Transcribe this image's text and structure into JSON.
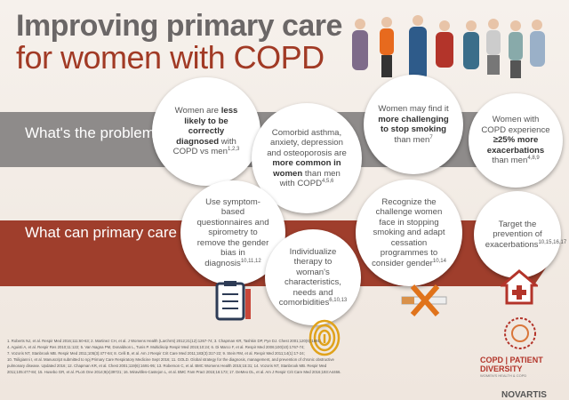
{
  "header": {
    "title_line_1": "Improving primary care",
    "title_line_2": "for women with COPD"
  },
  "rows": [
    {
      "label": "What's the problem?"
    },
    {
      "label": "What can primary care physicians do?"
    }
  ],
  "bubbles": [
    [
      {
        "t": "Women are "
      },
      {
        "b": "less likely to be correctly diagnosed"
      },
      {
        "t": " with COPD vs men"
      },
      {
        "sup": "1,2,3"
      }
    ],
    [
      {
        "t": "Comorbid asthma, anxiety, depression and osteoporosis are "
      },
      {
        "b": "more common in women"
      },
      {
        "t": " than men with COPD"
      },
      {
        "sup": "4,5,6"
      }
    ],
    [
      {
        "t": "Women may find it "
      },
      {
        "b": "more challenging to stop smoking"
      },
      {
        "t": " than men"
      },
      {
        "sup": "7"
      }
    ],
    [
      {
        "t": "Women with COPD experience "
      },
      {
        "b": "≥25% more exacerbations"
      },
      {
        "t": " than men"
      },
      {
        "sup": "4,8,9"
      }
    ],
    [
      {
        "t": "Use symptom-based questionnaires and spirometry to remove the gender bias in diagnosis"
      },
      {
        "sup": "10,11,12"
      }
    ],
    [
      {
        "t": "Individualize therapy to woman's characteristics, needs and comorbidities"
      },
      {
        "sup": "6,10,13"
      }
    ],
    [
      {
        "t": "Recognize the challenge women face in stopping smoking and adapt cessation programmes to consider gender"
      },
      {
        "sup": "10,14"
      }
    ],
    [
      {
        "t": "Target the prevention of exacerbations"
      },
      {
        "sup": "10,15,16,17"
      }
    ]
  ],
  "references": [
    "1. Roberts NJ, et al. Respir Med 2016;111:60-63; 2. Martinez CH, et al. J Womens Health (Larchmt) 2012;21(12):1267-74; 3. Chapman KR, Tashkin DP, Pye DJ. Chest 2001;120(6):1691;",
    "4. Aguisti A, et al. Respir Res 2010;11:122; 5. Van Nagna PM, Donaldson L, Tunis P. Multidiscip Respir Med 2015;10:24; 6. Di Marco F, et al. Respir Med 2006;100(10):1767-74;",
    "7. Vozoris NT, Stanbrook MB. Respir Med 2011;105(3):477-84; 8. Celli B, et al. Am J Respir Crit Care Med 2011;183(3):317-22; 9. Stein RM, et al. Respir Med 2011;14(1):17-24;",
    "10. Tsiligianni I, et al. Manuscript submitted to npj Primary Care Respiratory Medicine Sept 2016; 11. GOLD. Global strategy for the diagnosis, management, and prevention of chronic obstructive",
    "pulmonary disease. Updated 2016; 12. Chapman KR, et al. Chest 2001;119(6):1691-95; 13. Roberson C, et al. BMC Womens Health 2015;15:31; 14. Vozoris NT, Stanbrook MB. Respir Med",
    "2011;105:477-84; 15. Husebo GR, et al. PLoS One 2014;9(e)39721; 16. Miravitlles-Castejon L, et al. BMC Fam Pract 2015;16:173; 17. DeMeo DL, et al. Am J Respir Crit Care Med 2016;193:A4466."
  ],
  "footer": {
    "logo": "COPD | PATIENT DIVERSITY",
    "tagline": "WOMEN'S HEALTH & COPD",
    "sponsor": "NOVARTIS"
  }
}
